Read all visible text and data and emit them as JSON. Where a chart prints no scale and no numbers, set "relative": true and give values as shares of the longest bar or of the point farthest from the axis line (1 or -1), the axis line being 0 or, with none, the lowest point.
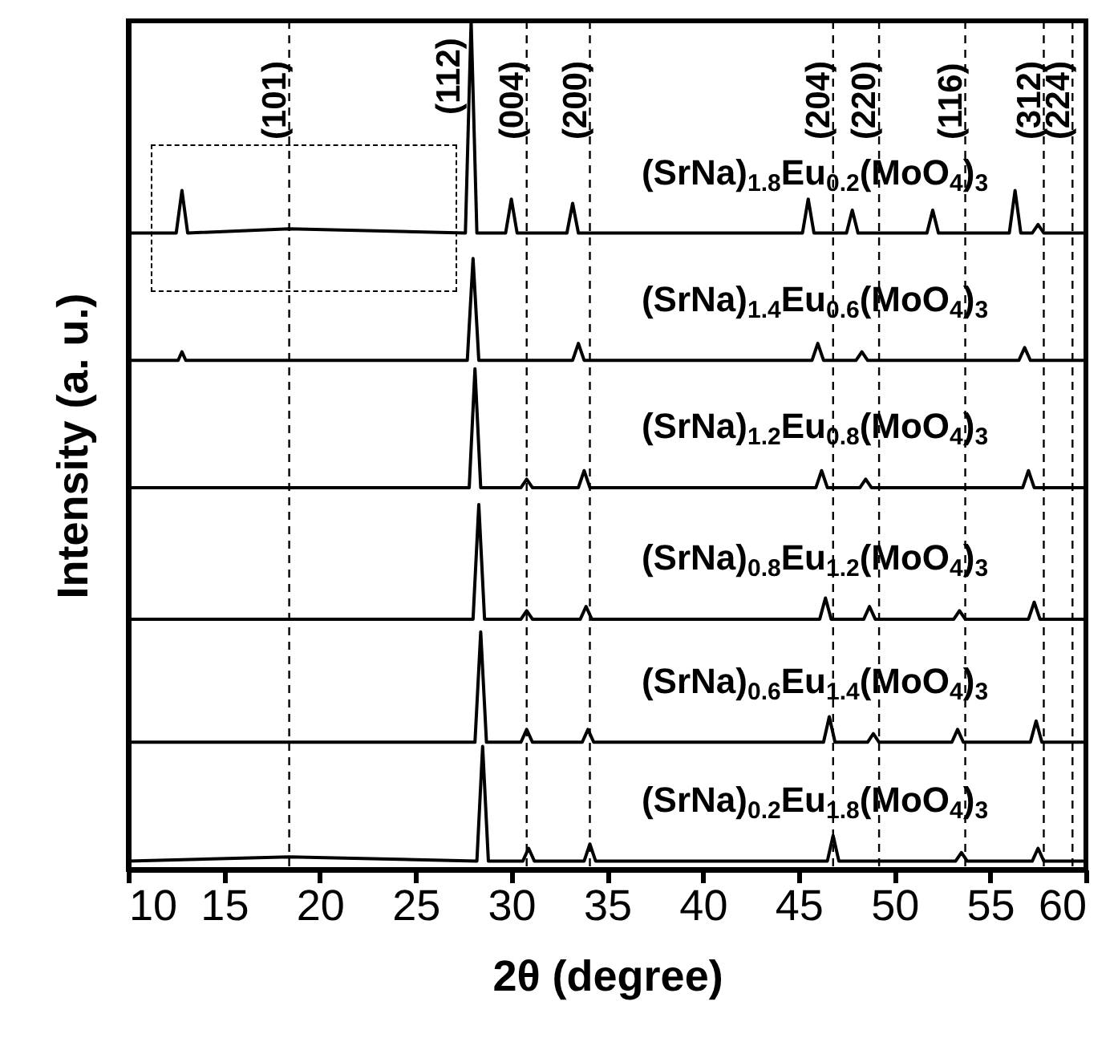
{
  "chart_data": {
    "type": "line",
    "relative": true,
    "xlabel": "2θ (degree)",
    "ylabel": "Intensity (a. u.)",
    "xlim": [
      10,
      60
    ],
    "xticks": [
      10,
      15,
      20,
      25,
      30,
      35,
      40,
      45,
      50,
      55,
      60
    ],
    "series": [
      {
        "name": "(SrNa)$_{1.8}$Eu$_{0.2}$(MoO$_{4}$)$_{3}$",
        "color": "#000000",
        "x": [
          10,
          12.5,
          12.8,
          13.1,
          18.4,
          27.6,
          27.9,
          28.2,
          29.7,
          30.0,
          30.3,
          32.9,
          33.2,
          33.5,
          45.2,
          45.5,
          45.8,
          47.5,
          47.8,
          48.1,
          51.7,
          52.0,
          52.3,
          56.0,
          56.3,
          56.6,
          57.2,
          57.5,
          57.8,
          60
        ],
        "values": [
          0.75,
          0.75,
          0.8,
          0.75,
          0.755,
          0.75,
          1,
          0.75,
          0.75,
          0.79,
          0.75,
          0.75,
          0.785,
          0.75,
          0.75,
          0.79,
          0.75,
          0.75,
          0.777,
          0.75,
          0.75,
          0.777,
          0.75,
          0.75,
          0.8,
          0.75,
          0.75,
          0.76,
          0.75,
          0.75
        ]
      },
      {
        "name": "(SrNa)$_{1.4}$Eu$_{0.6}$(MoO$_{4}$)$_{3}$",
        "color": "#000000",
        "x": [
          10,
          12.6,
          12.8,
          13.0,
          27.7,
          28.0,
          28.3,
          33.2,
          33.5,
          33.8,
          45.7,
          46.0,
          46.3,
          48.0,
          48.3,
          48.6,
          56.5,
          56.8,
          57.1,
          60
        ],
        "values": [
          0.6,
          0.6,
          0.61,
          0.6,
          0.6,
          0.72,
          0.6,
          0.6,
          0.62,
          0.6,
          0.6,
          0.62,
          0.6,
          0.6,
          0.61,
          0.6,
          0.6,
          0.615,
          0.6,
          0.6
        ]
      },
      {
        "name": "(SrNa)$_{1.2}$Eu$_{0.8}$(MoO$_{4}$)$_{3}$",
        "color": "#000000",
        "x": [
          10,
          27.8,
          28.1,
          28.4,
          30.5,
          30.8,
          31.1,
          33.5,
          33.8,
          34.1,
          45.9,
          46.2,
          46.5,
          48.2,
          48.5,
          48.8,
          56.7,
          57.0,
          57.3,
          60
        ],
        "values": [
          0.45,
          0.45,
          0.59,
          0.45,
          0.45,
          0.46,
          0.45,
          0.45,
          0.47,
          0.45,
          0.45,
          0.47,
          0.45,
          0.45,
          0.46,
          0.45,
          0.45,
          0.47,
          0.45,
          0.45
        ]
      },
      {
        "name": "(SrNa)$_{0.8}$Eu$_{1.2}$(MoO$_{4}$)$_{3}$",
        "color": "#000000",
        "x": [
          10,
          28.0,
          28.3,
          28.6,
          30.5,
          30.8,
          31.1,
          33.6,
          33.9,
          34.2,
          46.1,
          46.4,
          46.7,
          48.4,
          48.7,
          49.0,
          53.1,
          53.4,
          53.7,
          57.0,
          57.3,
          57.6,
          60
        ],
        "values": [
          0.295,
          0.295,
          0.43,
          0.295,
          0.295,
          0.305,
          0.295,
          0.295,
          0.31,
          0.295,
          0.295,
          0.32,
          0.295,
          0.295,
          0.31,
          0.295,
          0.295,
          0.305,
          0.295,
          0.295,
          0.315,
          0.295,
          0.295
        ]
      },
      {
        "name": "(SrNa)$_{0.6}$Eu$_{1.4}$(MoO$_{4}$)$_{3}$",
        "color": "#000000",
        "x": [
          10,
          28.1,
          28.4,
          28.7,
          30.5,
          30.8,
          31.1,
          33.7,
          34.0,
          34.3,
          46.3,
          46.6,
          46.9,
          48.6,
          48.9,
          49.2,
          53.0,
          53.3,
          53.6,
          57.1,
          57.4,
          57.7,
          60
        ],
        "values": [
          0.15,
          0.15,
          0.28,
          0.15,
          0.15,
          0.165,
          0.15,
          0.15,
          0.165,
          0.15,
          0.15,
          0.18,
          0.15,
          0.15,
          0.16,
          0.15,
          0.15,
          0.165,
          0.15,
          0.15,
          0.175,
          0.15,
          0.15
        ]
      },
      {
        "name": "(SrNa)$_{0.2}$Eu$_{1.8}$(MoO$_{4}$)$_{3}$",
        "color": "#000000",
        "x": [
          10,
          18.4,
          28.2,
          28.5,
          28.8,
          30.6,
          30.9,
          31.2,
          33.8,
          34.1,
          34.4,
          46.5,
          46.8,
          47.1,
          53.2,
          53.5,
          53.8,
          57.2,
          57.5,
          57.8,
          60
        ],
        "values": [
          0.01,
          0.015,
          0.01,
          0.145,
          0.01,
          0.01,
          0.025,
          0.01,
          0.01,
          0.03,
          0.01,
          0.01,
          0.04,
          0.01,
          0.01,
          0.02,
          0.01,
          0.01,
          0.025,
          0.01,
          0.01
        ]
      }
    ],
    "ref_lines": [
      {
        "axis": "x",
        "value": 18.4,
        "color": "#000000",
        "line_style": "dashed"
      },
      {
        "axis": "x",
        "value": 30.8,
        "color": "#000000",
        "line_style": "dashed"
      },
      {
        "axis": "x",
        "value": 34.1,
        "color": "#000000",
        "line_style": "dashed"
      },
      {
        "axis": "x",
        "value": 46.8,
        "color": "#000000",
        "line_style": "dashed"
      },
      {
        "axis": "x",
        "value": 49.2,
        "color": "#000000",
        "line_style": "dashed"
      },
      {
        "axis": "x",
        "value": 53.7,
        "color": "#000000",
        "line_style": "dashed"
      },
      {
        "axis": "x",
        "value": 57.8,
        "color": "#000000",
        "line_style": "dashed"
      },
      {
        "axis": "x",
        "value": 59.3,
        "color": "#000000",
        "line_style": "dashed"
      }
    ],
    "annotations": [
      {
        "text": "(112)",
        "x": 27.9,
        "y": 1
      },
      {
        "text": "(101)",
        "x": 18.4,
        "y": 0.86
      },
      {
        "text": "(004)",
        "x": 30.8,
        "y": 0.86
      },
      {
        "text": "(200)",
        "x": 34.1,
        "y": 0.86
      },
      {
        "text": "(204)",
        "x": 46.8,
        "y": 0.86
      },
      {
        "text": "(220)",
        "x": 49.2,
        "y": 0.86
      },
      {
        "text": "(116)",
        "x": 53.7,
        "y": 0.86
      },
      {
        "text": "(312)",
        "x": 57.8,
        "y": 0.86
      },
      {
        "text": "(224)",
        "x": 59.3,
        "y": 0.86
      }
    ]
  }
}
